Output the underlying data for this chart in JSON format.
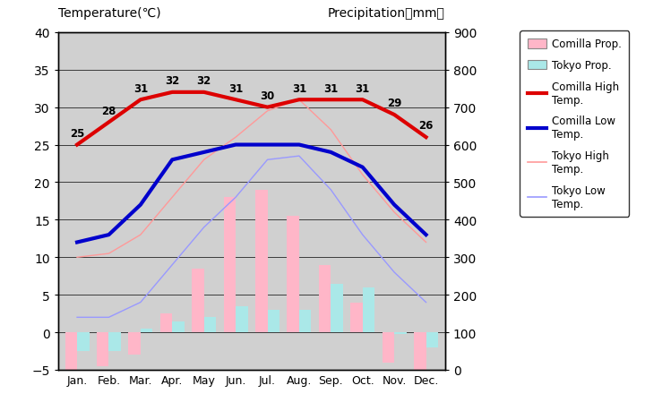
{
  "months": [
    "Jan.",
    "Feb.",
    "Mar.",
    "Apr.",
    "May",
    "Jun.",
    "Jul.",
    "Aug.",
    "Sep.",
    "Oct.",
    "Nov.",
    "Dec."
  ],
  "comilla_high": [
    25,
    28,
    31,
    32,
    32,
    31,
    30,
    31,
    31,
    31,
    29,
    26
  ],
  "comilla_low": [
    12,
    13,
    17,
    23,
    24,
    25,
    25,
    25,
    24,
    22,
    17,
    13
  ],
  "tokyo_high": [
    10,
    10.5,
    13,
    18,
    23,
    26,
    29.5,
    31,
    27,
    21,
    16,
    12
  ],
  "tokyo_low": [
    2,
    2,
    4,
    9,
    14,
    18,
    23,
    23.5,
    19,
    13,
    8,
    4
  ],
  "comilla_precip_bar": [
    -5,
    -4.5,
    -3,
    2.5,
    8.5,
    18,
    19,
    15.5,
    9,
    4,
    -4,
    -5
  ],
  "tokyo_precip_bar": [
    -2.5,
    -2.5,
    0.5,
    1.5,
    2,
    3.5,
    3,
    3,
    6.5,
    6,
    -0.2,
    -2
  ],
  "comilla_high_labels": [
    25,
    28,
    31,
    32,
    32,
    31,
    30,
    31,
    31,
    31,
    29,
    26
  ],
  "bg_color": "#d0d0d0",
  "comilla_high_color": "#dd0000",
  "comilla_low_color": "#0000cc",
  "tokyo_high_color": "#ff9999",
  "tokyo_low_color": "#9999ff",
  "comilla_precip_color": "#ffb6c8",
  "tokyo_precip_color": "#aae8e8",
  "ylim_temp": [
    -5,
    40
  ],
  "ylim_precip": [
    0,
    900
  ],
  "title_left": "Temperature(℃)",
  "title_right": "Precipitation（mm）"
}
